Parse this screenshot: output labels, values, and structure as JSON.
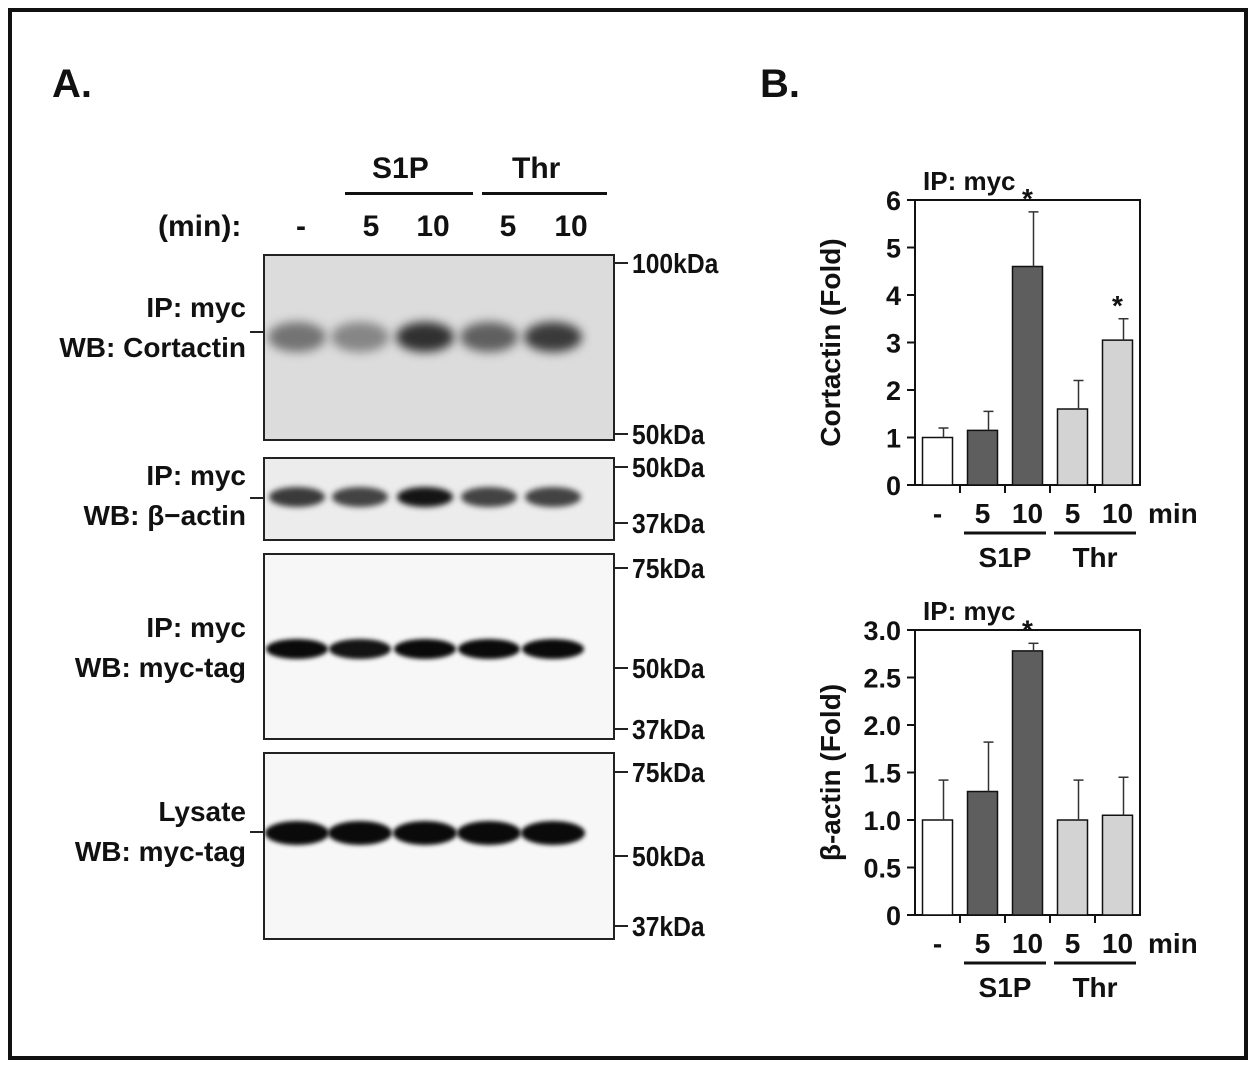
{
  "panel_a": {
    "letter": "A.",
    "group_s1p": "S1P",
    "group_thr": "Thr",
    "time_label": "(min):",
    "lanes": [
      "-",
      "5",
      "10",
      "5",
      "10"
    ],
    "blots": [
      {
        "label_line1": "IP: myc",
        "label_line2": "WB: Cortactin",
        "mw_top": "100kDa",
        "mw_bottom": "50kDa",
        "band_intensity": [
          0.45,
          0.35,
          0.8,
          0.55,
          0.75
        ]
      },
      {
        "label_line1": "IP: myc",
        "label_line2": "WB: β−actin",
        "mw_top": "50kDa",
        "mw_bottom": "37kDa",
        "band_intensity": [
          0.75,
          0.7,
          0.95,
          0.7,
          0.7
        ]
      },
      {
        "label_line1": "IP: myc",
        "label_line2": "WB: myc-tag",
        "mw_top": "75kDa",
        "mw_mid": "50kDa",
        "mw_bottom": "37kDa",
        "band_intensity": [
          1.0,
          0.95,
          1.0,
          1.0,
          1.0
        ]
      },
      {
        "label_line1": "Lysate",
        "label_line2": "WB: myc-tag",
        "mw_top": "75kDa",
        "mw_mid": "50kDa",
        "mw_bottom": "37kDa",
        "band_intensity": [
          1.0,
          1.0,
          1.0,
          1.0,
          1.0
        ]
      }
    ]
  },
  "panel_b": {
    "letter": "B."
  },
  "chart_data": [
    {
      "type": "bar",
      "title": "IP: myc",
      "ylabel": "Cortactin (Fold)",
      "categories": [
        "-",
        "5",
        "10",
        "5",
        "10"
      ],
      "x_unit": "min",
      "groups": [
        {
          "name": "S1P",
          "categories": [
            "5",
            "10"
          ]
        },
        {
          "name": "Thr",
          "categories": [
            "5",
            "10"
          ]
        }
      ],
      "values": [
        1.0,
        1.15,
        4.6,
        1.6,
        3.05
      ],
      "errors": [
        0.2,
        0.4,
        1.15,
        0.6,
        0.45
      ],
      "significant": [
        false,
        false,
        true,
        false,
        true
      ],
      "significance_marker": "*",
      "bar_colors": [
        "#ffffff",
        "#5e5e5e",
        "#5e5e5e",
        "#d3d3d3",
        "#d3d3d3"
      ],
      "ylim": [
        0,
        6
      ],
      "yticks": [
        "0",
        "1",
        "2",
        "3",
        "4",
        "5",
        "6"
      ],
      "grid": false
    },
    {
      "type": "bar",
      "title": "IP: myc",
      "ylabel": "β-actin (Fold)",
      "categories": [
        "-",
        "5",
        "10",
        "5",
        "10"
      ],
      "x_unit": "min",
      "groups": [
        {
          "name": "S1P",
          "categories": [
            "5",
            "10"
          ]
        },
        {
          "name": "Thr",
          "categories": [
            "5",
            "10"
          ]
        }
      ],
      "values": [
        1.0,
        1.3,
        2.78,
        1.0,
        1.05
      ],
      "errors": [
        0.42,
        0.52,
        0.08,
        0.42,
        0.4
      ],
      "significant": [
        false,
        false,
        true,
        false,
        false
      ],
      "significance_marker": "*",
      "bar_colors": [
        "#ffffff",
        "#5e5e5e",
        "#5e5e5e",
        "#d3d3d3",
        "#d3d3d3"
      ],
      "ylim": [
        0,
        3
      ],
      "yticks": [
        "0",
        "0.5",
        "1.0",
        "1.5",
        "2.0",
        "2.5",
        "3.0"
      ],
      "grid": false
    }
  ]
}
